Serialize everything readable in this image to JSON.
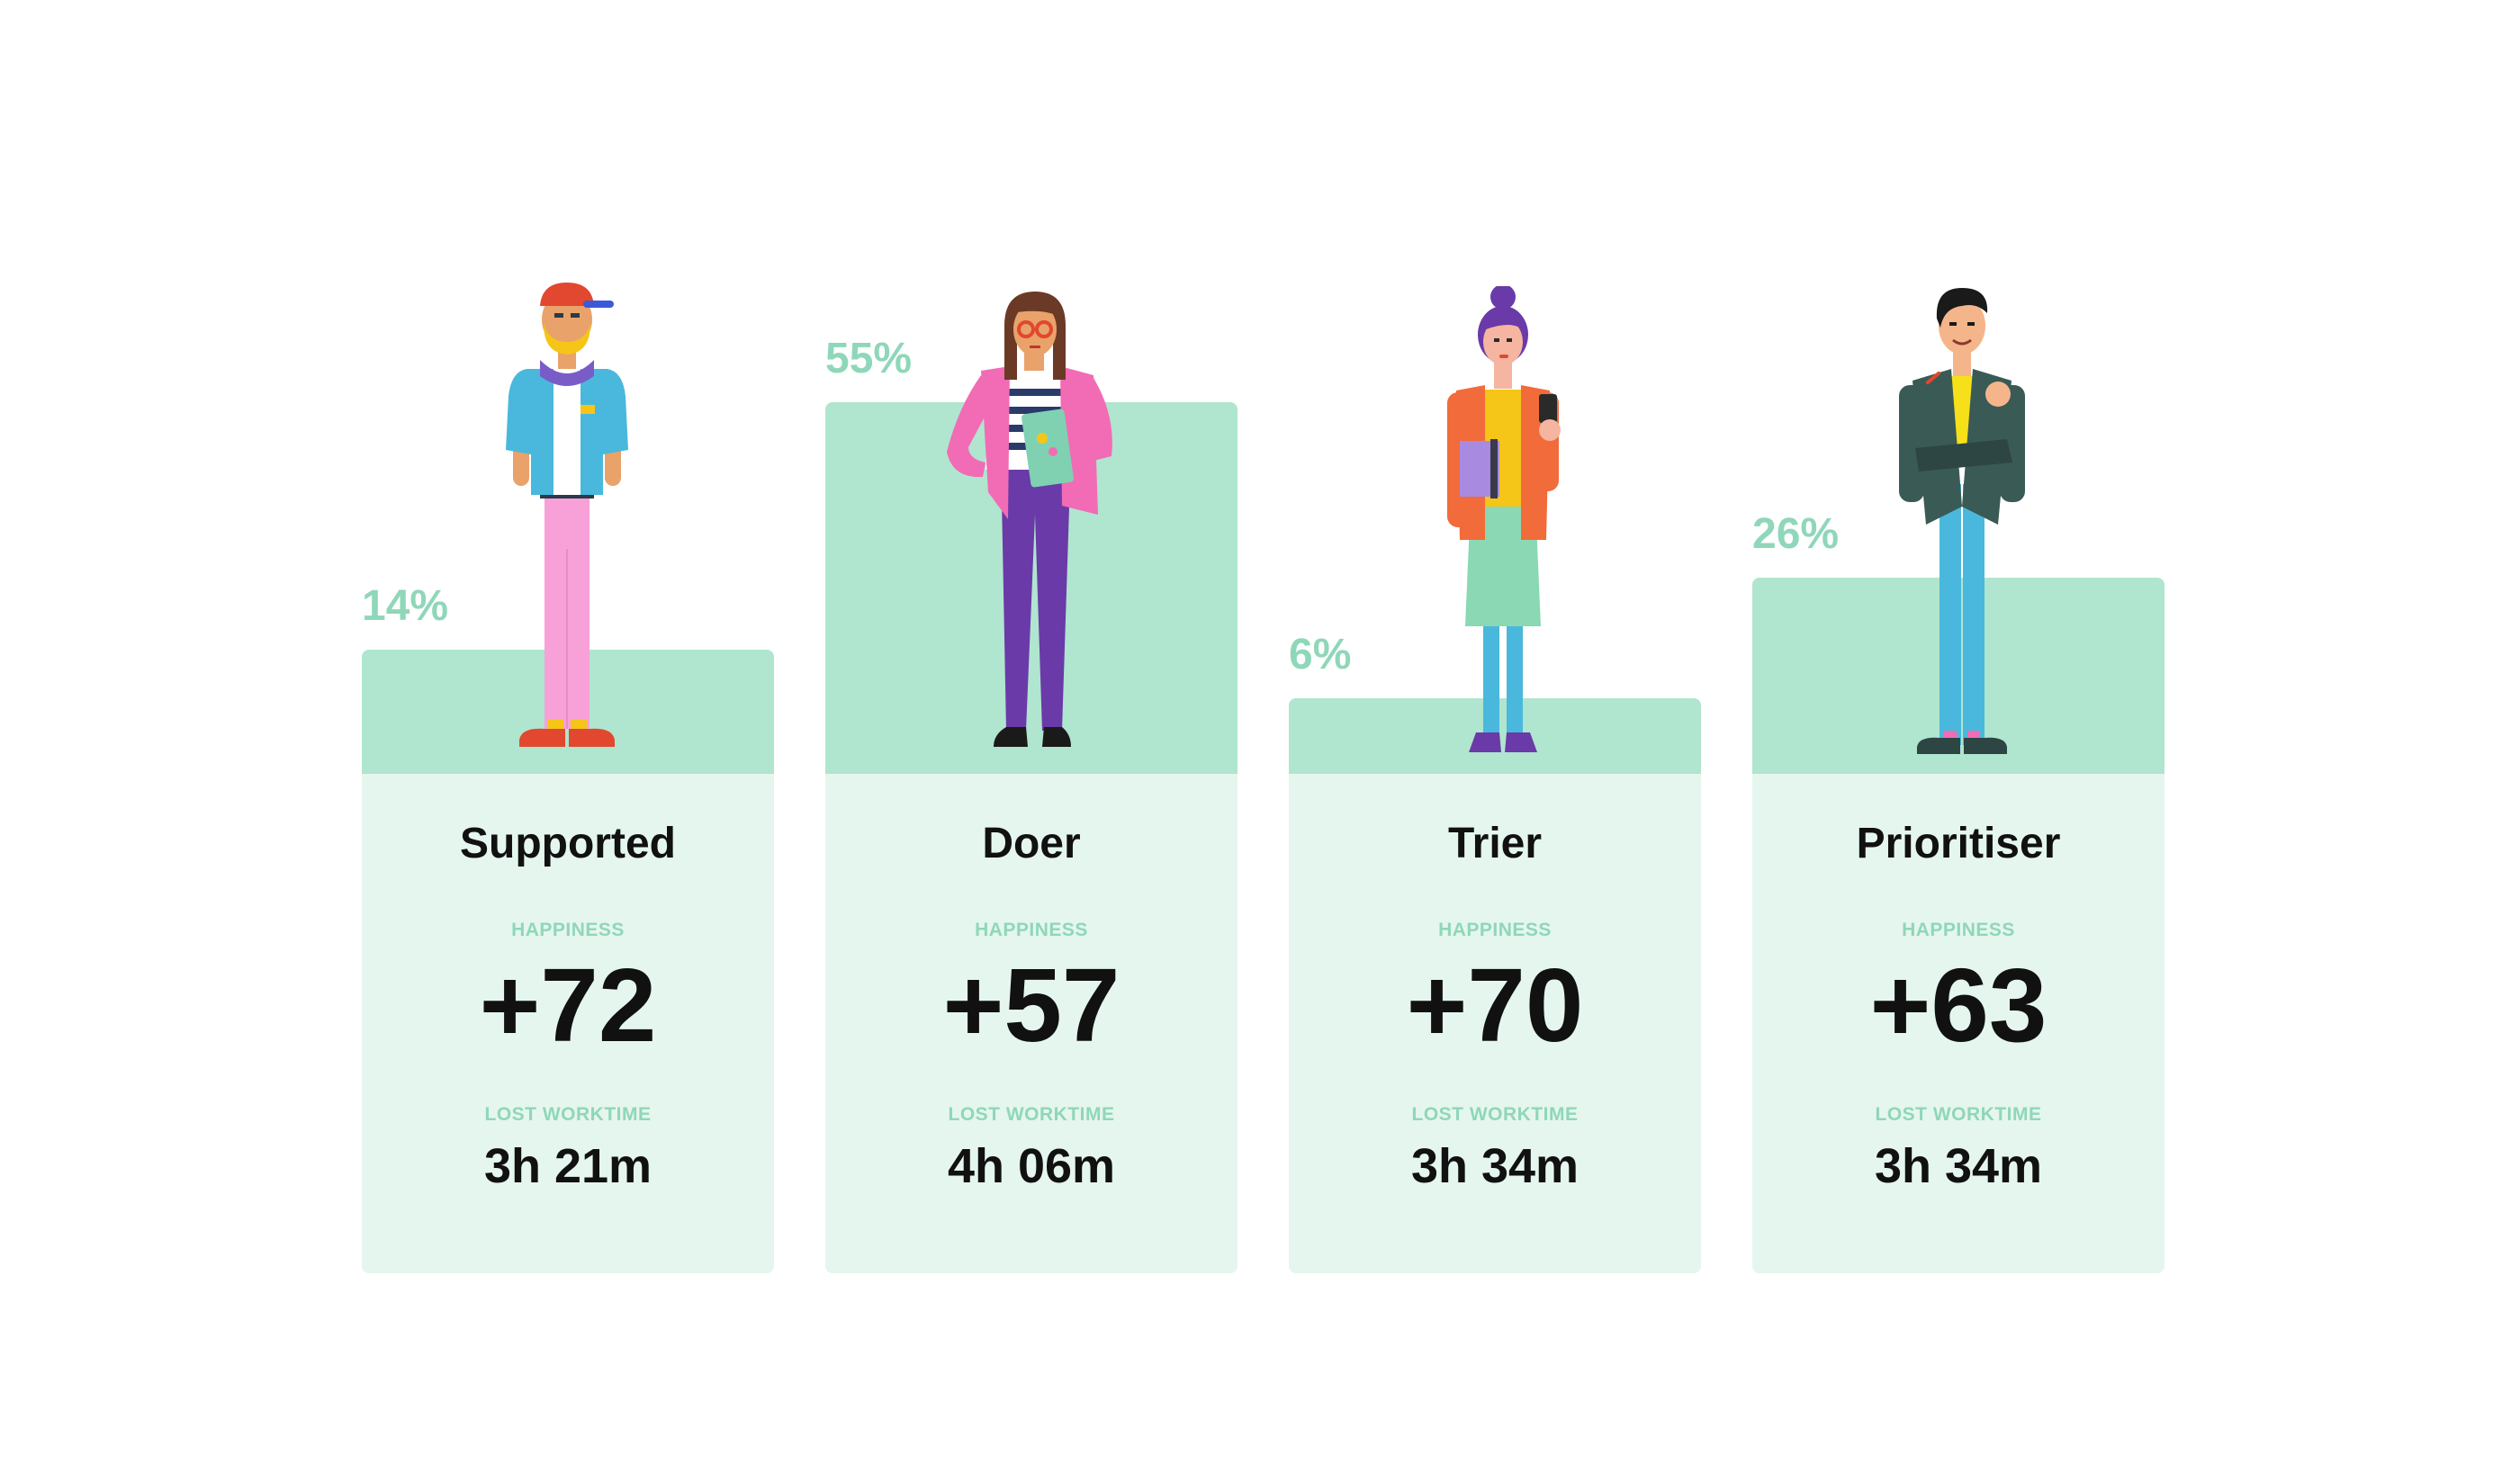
{
  "chart_data": {
    "type": "bar",
    "categories": [
      "Supported",
      "Doer",
      "Trier",
      "Prioritiser"
    ],
    "series": [
      {
        "values": [
          14,
          55,
          6,
          26
        ]
      }
    ],
    "value_labels": [
      "14%",
      "55%",
      "6%",
      "26%"
    ],
    "ylim": [
      0,
      55
    ],
    "grid": false,
    "colors": {
      "bar": "#b0e5cf",
      "card": "#e5f6ee",
      "accent": "#8fd7b9",
      "text": "#111111"
    }
  },
  "cards": [
    {
      "name": "Supported",
      "happiness_label": "HAPPINESS",
      "happiness": "+72",
      "worktime_label": "LOST WORKTIME",
      "worktime": "3h 21m",
      "figure": "person-cap-icon"
    },
    {
      "name": "Doer",
      "happiness_label": "HAPPINESS",
      "happiness": "+57",
      "worktime_label": "LOST WORKTIME",
      "worktime": "4h 06m",
      "figure": "person-glasses-icon"
    },
    {
      "name": "Trier",
      "happiness_label": "HAPPINESS",
      "happiness": "+70",
      "worktime_label": "LOST WORKTIME",
      "worktime": "3h 34m",
      "figure": "person-bun-icon"
    },
    {
      "name": "Prioritiser",
      "happiness_label": "HAPPINESS",
      "happiness": "+63",
      "worktime_label": "LOST WORKTIME",
      "worktime": "3h 34m",
      "figure": "person-suit-icon"
    }
  ]
}
